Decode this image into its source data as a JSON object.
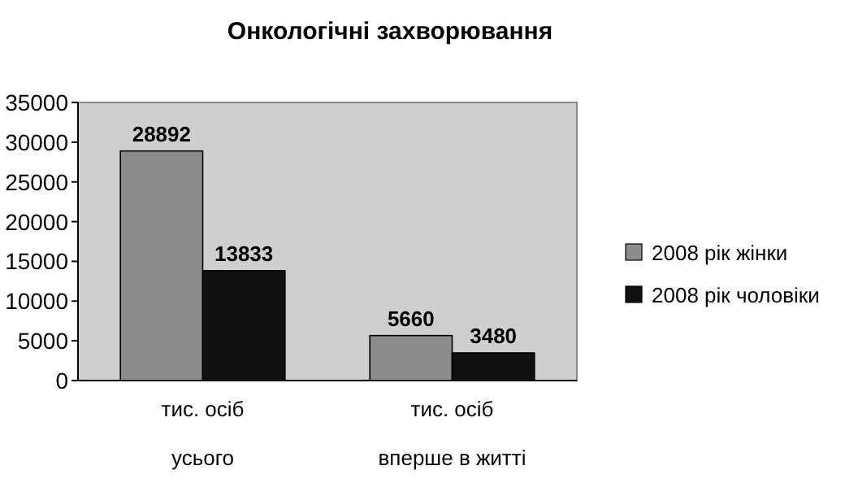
{
  "chart_data": {
    "type": "bar",
    "title": "Онкологічні захворювання",
    "categories": [
      "тис. осіб\nусього",
      "тис. осіб\nвперше в житті"
    ],
    "series": [
      {
        "name": "2008 рік жінки",
        "color": "#8c8c8c",
        "values": [
          28892,
          5660
        ]
      },
      {
        "name": "2008 рік чоловіки",
        "color": "#111111",
        "values": [
          13833,
          3480
        ]
      }
    ],
    "ylim": [
      0,
      35000
    ],
    "yticks": [
      0,
      5000,
      10000,
      15000,
      20000,
      25000,
      30000,
      35000
    ],
    "grid": false,
    "legend": "right",
    "data_labels": true
  }
}
